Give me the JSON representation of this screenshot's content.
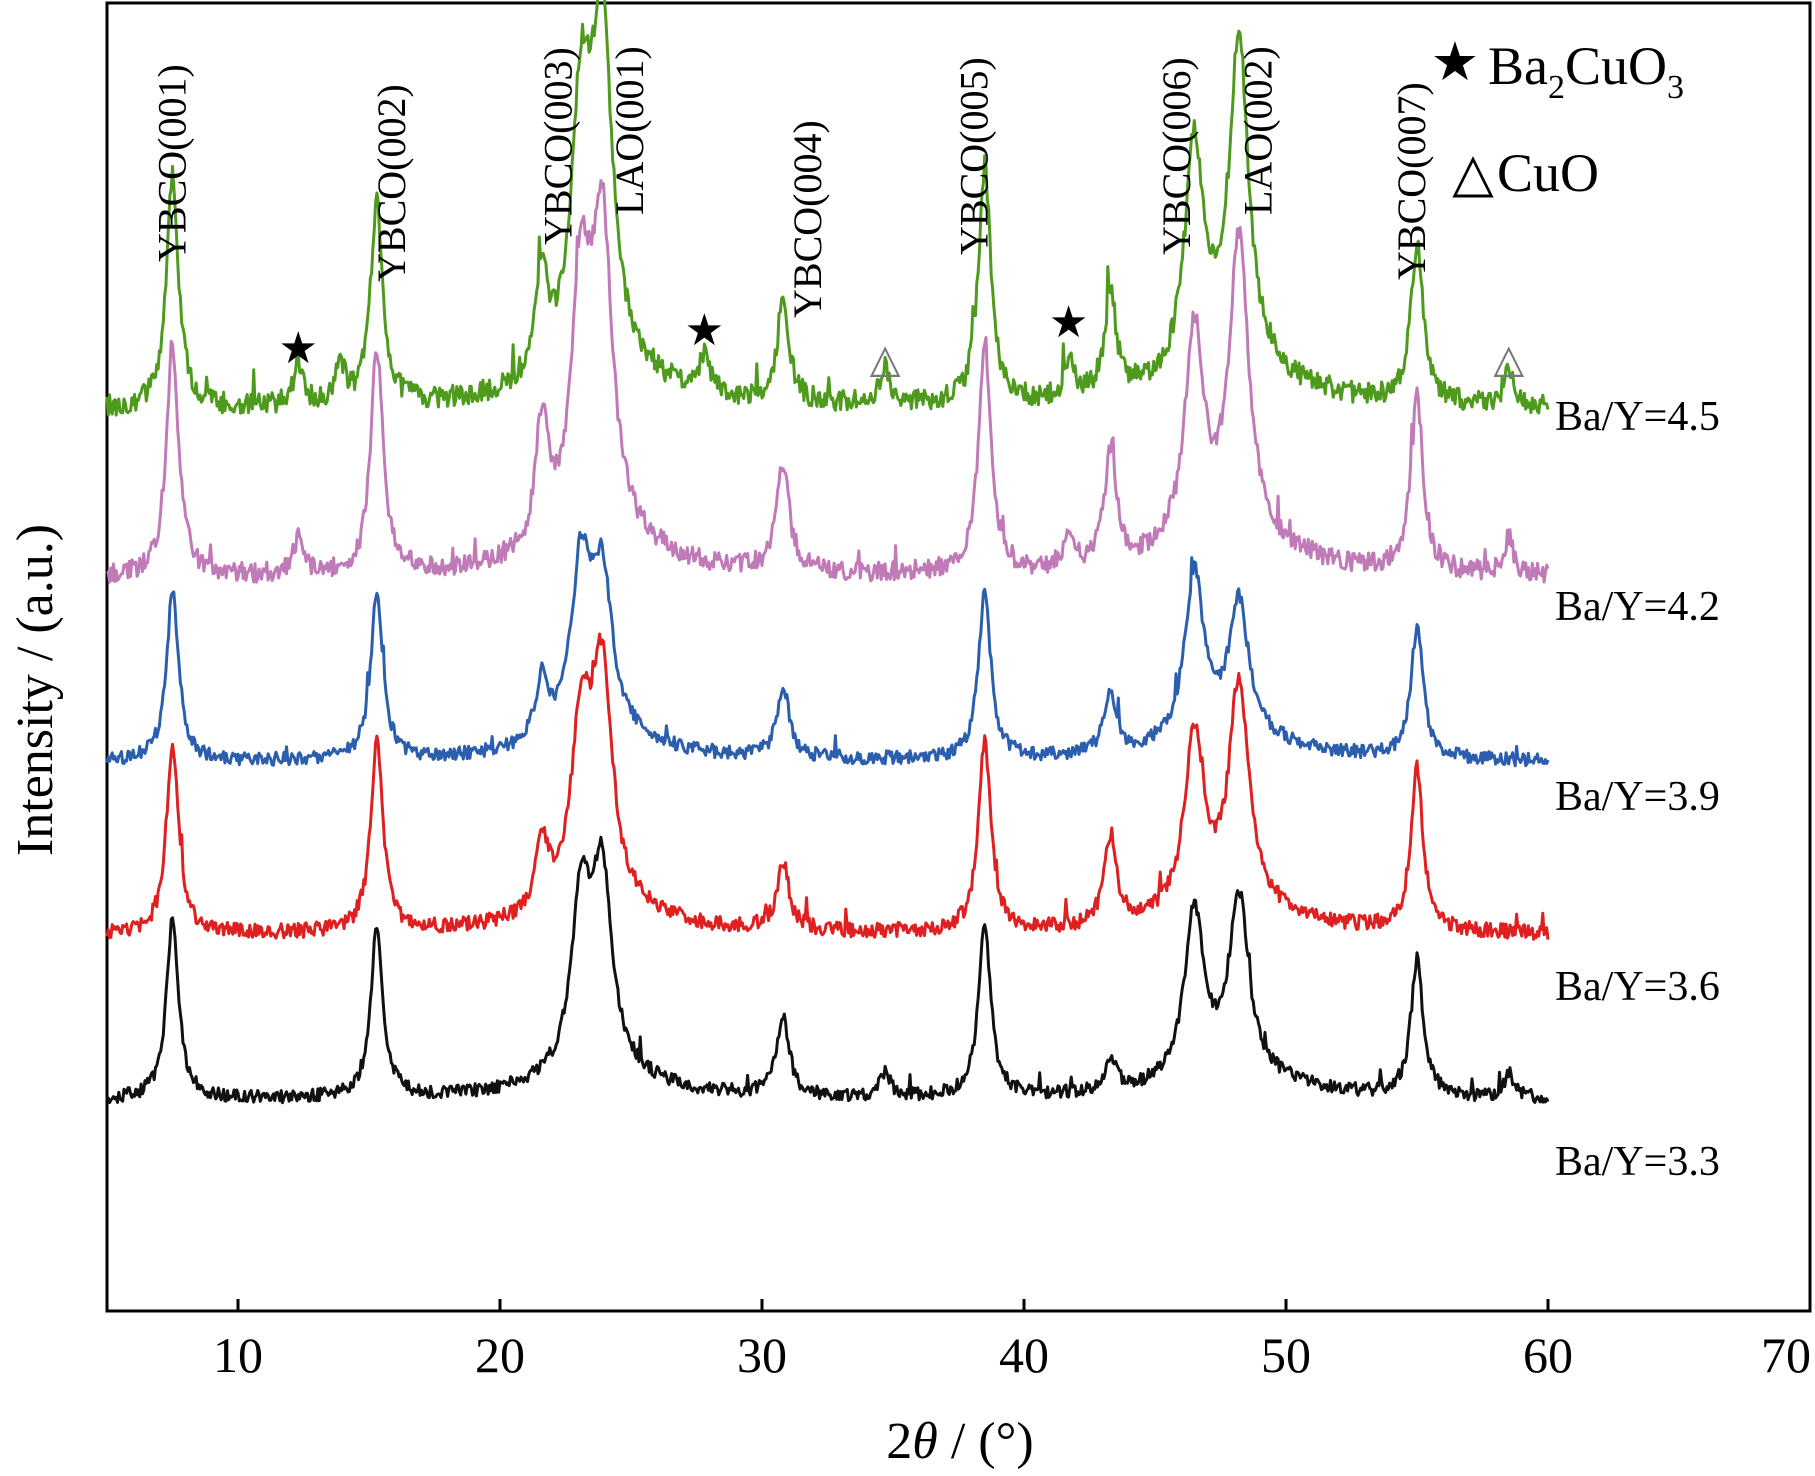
{
  "chart_data": {
    "type": "line",
    "xlabel_prefix": "2",
    "xlabel_symbol": "θ",
    "xlabel_suffix": " / (°)",
    "ylabel": "Intensity / (a.u.)",
    "xlim": [
      5,
      70
    ],
    "xticks": [
      10,
      20,
      30,
      40,
      50,
      60,
      70
    ],
    "yticks_shown": false,
    "grid": false,
    "legend": [
      {
        "marker": "★",
        "base": "Ba",
        "sub1": "2",
        "mid": "CuO",
        "sub2": "3"
      },
      {
        "marker": "△",
        "text": "CuO"
      }
    ],
    "legend_position": "top-right",
    "peak_labels": [
      {
        "text": "YBCO(001)",
        "x": 7.5
      },
      {
        "text": "YBCO(002)",
        "x": 15.3
      },
      {
        "text": "YBCO(003)",
        "x": 22.8
      },
      {
        "text": "LAO(001)",
        "x": 24.0
      },
      {
        "text": "YBCO(004)",
        "x": 30.8
      },
      {
        "text": "YBCO(005)",
        "x": 38.5
      },
      {
        "text": "YBCO(006)",
        "x": 46.6
      },
      {
        "text": "LAO(002)",
        "x": 48.0
      },
      {
        "text": "YBCO(007)",
        "x": 55.0
      }
    ],
    "impurity_markers": {
      "series": "Ba/Y=4.5",
      "star_x": [
        12.3,
        27.8,
        41.7
      ],
      "triangle_x": [
        34.7,
        58.5
      ]
    },
    "peaks_2theta": [
      7.5,
      15.3,
      21.6,
      23.1,
      23.9,
      30.8,
      38.5,
      43.3,
      46.5,
      48.2,
      55.0
    ],
    "series": [
      {
        "name": "Ba/Y=4.5",
        "color": "#4e9a1d",
        "peak_heights": [
          0.7,
          0.62,
          0.3,
          0.76,
          1.0,
          0.3,
          0.72,
          0.3,
          0.7,
          1.0,
          0.48
        ],
        "extra_peaks": [
          12.3,
          13.9,
          27.8,
          34.7,
          41.7,
          58.5
        ]
      },
      {
        "name": "Ba/Y=4.2",
        "color": "#c07ab8",
        "peak_heights": [
          0.78,
          0.75,
          0.42,
          0.8,
          1.0,
          0.37,
          0.78,
          0.38,
          0.72,
          1.0,
          0.58
        ],
        "extra_peaks": [
          12.3,
          41.7,
          58.5
        ]
      },
      {
        "name": "Ba/Y=3.9",
        "color": "#2b5fae",
        "peak_heights": [
          0.82,
          0.82,
          0.3,
          0.82,
          0.72,
          0.35,
          0.82,
          0.3,
          0.82,
          0.66,
          0.64
        ],
        "extra_peaks": []
      },
      {
        "name": "Ba/Y=3.6",
        "color": "#e02020",
        "peak_heights": [
          0.85,
          0.85,
          0.32,
          0.78,
          1.0,
          0.3,
          0.85,
          0.4,
          0.8,
          1.0,
          0.72
        ],
        "extra_peaks": []
      },
      {
        "name": "Ba/Y=3.3",
        "color": "#111111",
        "peak_heights": [
          0.9,
          0.85,
          0.0,
          0.85,
          0.95,
          0.4,
          0.85,
          0.15,
          0.85,
          0.9,
          0.68
        ],
        "extra_peaks": [
          34.7,
          58.5
        ]
      }
    ]
  }
}
